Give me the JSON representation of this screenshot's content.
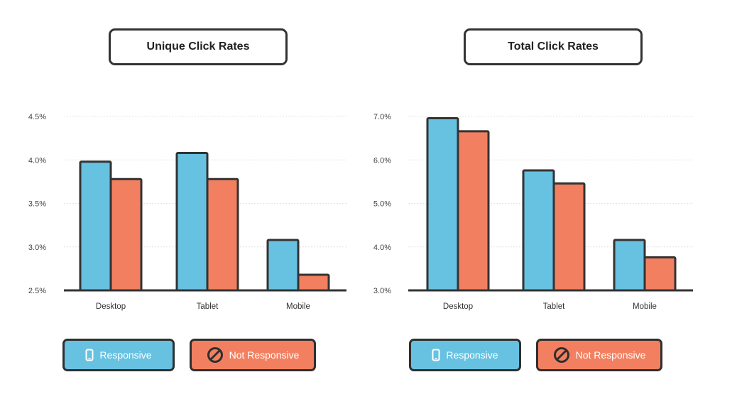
{
  "colors": {
    "responsive": "#67c2e2",
    "not_responsive": "#f28060",
    "outline": "#333333"
  },
  "legend": {
    "responsive_label": "Responsive",
    "responsive_icon": "phone-icon",
    "not_responsive_label": "Not Responsive",
    "not_responsive_icon": "prohibited-icon"
  },
  "chart_data": [
    {
      "type": "bar",
      "title": "Unique Click Rates",
      "categories": [
        "Desktop",
        "Tablet",
        "Mobile"
      ],
      "yticks": [
        "2.5%",
        "3.0%",
        "3.5%",
        "4.0%",
        "4.5%"
      ],
      "ylim": [
        2.5,
        4.5
      ],
      "grid": true,
      "legend_position": "bottom",
      "series": [
        {
          "name": "Responsive",
          "values": [
            3.98,
            4.08,
            3.08
          ]
        },
        {
          "name": "Not Responsive",
          "values": [
            3.78,
            3.78,
            2.68
          ]
        }
      ]
    },
    {
      "type": "bar",
      "title": "Total Click Rates",
      "categories": [
        "Desktop",
        "Tablet",
        "Mobile"
      ],
      "yticks": [
        "3.0%",
        "4.0%",
        "5.0%",
        "6.0%",
        "7.0%"
      ],
      "ylim": [
        3.0,
        7.0
      ],
      "grid": true,
      "legend_position": "bottom",
      "series": [
        {
          "name": "Responsive",
          "values": [
            6.96,
            5.76,
            4.16
          ]
        },
        {
          "name": "Not Responsive",
          "values": [
            6.66,
            5.46,
            3.76
          ]
        }
      ]
    }
  ]
}
